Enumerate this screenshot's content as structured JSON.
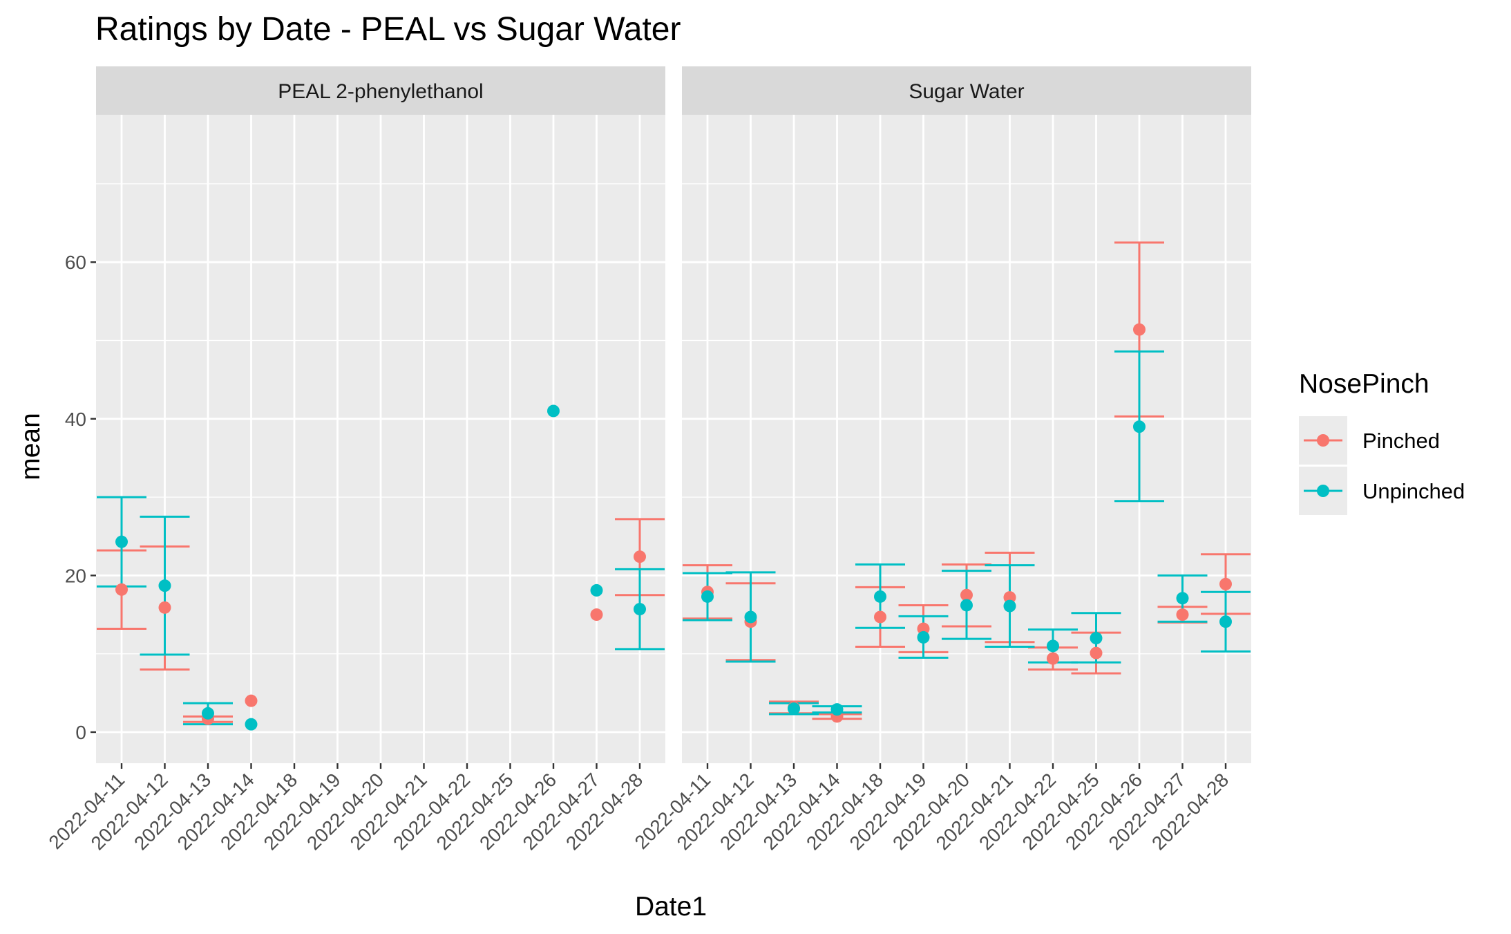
{
  "chart_data": {
    "type": "scatter",
    "title": "Ratings by Date - PEAL vs Sugar Water",
    "xlabel": "Date1",
    "ylabel": "mean",
    "ylim": [
      -4,
      80
    ],
    "yticks": [
      0,
      20,
      40,
      60
    ],
    "grid": true,
    "legend": {
      "title": "NosePinch",
      "placement": "right"
    },
    "categories": [
      "2022-04-11",
      "2022-04-12",
      "2022-04-13",
      "2022-04-14",
      "2022-04-18",
      "2022-04-19",
      "2022-04-20",
      "2022-04-21",
      "2022-04-22",
      "2022-04-25",
      "2022-04-26",
      "2022-04-27",
      "2022-04-28"
    ],
    "series_styles": [
      {
        "name": "Pinched",
        "color": "#F8766D"
      },
      {
        "name": "Unpinched",
        "color": "#00BFC4"
      }
    ],
    "panels": [
      {
        "name": "PEAL 2-phenylethanol",
        "series": [
          {
            "name": "Pinched",
            "points": [
              {
                "x": "2022-04-11",
                "y": 18.2,
                "lo": 13.2,
                "hi": 23.2
              },
              {
                "x": "2022-04-12",
                "y": 15.9,
                "lo": 8.0,
                "hi": 23.7
              },
              {
                "x": "2022-04-13",
                "y": 1.7,
                "lo": 1.3,
                "hi": 2.0
              },
              {
                "x": "2022-04-14",
                "y": 4.0
              },
              {
                "x": "2022-04-27",
                "y": 15.0
              },
              {
                "x": "2022-04-28",
                "y": 22.4,
                "lo": 17.5,
                "hi": 27.2
              }
            ]
          },
          {
            "name": "Unpinched",
            "points": [
              {
                "x": "2022-04-11",
                "y": 24.3,
                "lo": 18.6,
                "hi": 30.0
              },
              {
                "x": "2022-04-12",
                "y": 18.7,
                "lo": 9.9,
                "hi": 27.5
              },
              {
                "x": "2022-04-13",
                "y": 2.4,
                "lo": 1.0,
                "hi": 3.7
              },
              {
                "x": "2022-04-14",
                "y": 1.0
              },
              {
                "x": "2022-04-26",
                "y": 41.0
              },
              {
                "x": "2022-04-27",
                "y": 18.1
              },
              {
                "x": "2022-04-28",
                "y": 15.7,
                "lo": 10.6,
                "hi": 20.8
              }
            ]
          }
        ]
      },
      {
        "name": "Sugar Water",
        "series": [
          {
            "name": "Pinched",
            "points": [
              {
                "x": "2022-04-11",
                "y": 17.9,
                "lo": 14.5,
                "hi": 21.3
              },
              {
                "x": "2022-04-12",
                "y": 14.1,
                "lo": 9.2,
                "hi": 19.0
              },
              {
                "x": "2022-04-13",
                "y": 3.1,
                "lo": 2.4,
                "hi": 3.9
              },
              {
                "x": "2022-04-14",
                "y": 2.0,
                "lo": 1.7,
                "hi": 2.3
              },
              {
                "x": "2022-04-18",
                "y": 14.7,
                "lo": 10.9,
                "hi": 18.5
              },
              {
                "x": "2022-04-19",
                "y": 13.2,
                "lo": 10.2,
                "hi": 16.2
              },
              {
                "x": "2022-04-20",
                "y": 17.5,
                "lo": 13.5,
                "hi": 21.4
              },
              {
                "x": "2022-04-21",
                "y": 17.2,
                "lo": 11.5,
                "hi": 22.9
              },
              {
                "x": "2022-04-22",
                "y": 9.4,
                "lo": 8.0,
                "hi": 10.8
              },
              {
                "x": "2022-04-25",
                "y": 10.1,
                "lo": 7.5,
                "hi": 12.7
              },
              {
                "x": "2022-04-26",
                "y": 51.4,
                "lo": 40.3,
                "hi": 62.5
              },
              {
                "x": "2022-04-27",
                "y": 15.0,
                "lo": 14.0,
                "hi": 16.0
              },
              {
                "x": "2022-04-28",
                "y": 18.9,
                "lo": 15.1,
                "hi": 22.7
              }
            ]
          },
          {
            "name": "Unpinched",
            "points": [
              {
                "x": "2022-04-11",
                "y": 17.3,
                "lo": 14.3,
                "hi": 20.3
              },
              {
                "x": "2022-04-12",
                "y": 14.7,
                "lo": 9.0,
                "hi": 20.4
              },
              {
                "x": "2022-04-13",
                "y": 3.0,
                "lo": 2.3,
                "hi": 3.7
              },
              {
                "x": "2022-04-14",
                "y": 2.9,
                "lo": 2.5,
                "hi": 3.3
              },
              {
                "x": "2022-04-18",
                "y": 17.3,
                "lo": 13.3,
                "hi": 21.4
              },
              {
                "x": "2022-04-19",
                "y": 12.1,
                "lo": 9.5,
                "hi": 14.8
              },
              {
                "x": "2022-04-20",
                "y": 16.2,
                "lo": 11.9,
                "hi": 20.6
              },
              {
                "x": "2022-04-21",
                "y": 16.1,
                "lo": 10.9,
                "hi": 21.3
              },
              {
                "x": "2022-04-22",
                "y": 11.0,
                "lo": 8.9,
                "hi": 13.1
              },
              {
                "x": "2022-04-25",
                "y": 12.0,
                "lo": 8.9,
                "hi": 15.2
              },
              {
                "x": "2022-04-26",
                "y": 39.0,
                "lo": 29.5,
                "hi": 48.6
              },
              {
                "x": "2022-04-27",
                "y": 17.1,
                "lo": 14.1,
                "hi": 20.0
              },
              {
                "x": "2022-04-28",
                "y": 14.1,
                "lo": 10.3,
                "hi": 17.9
              }
            ]
          }
        ]
      }
    ]
  }
}
